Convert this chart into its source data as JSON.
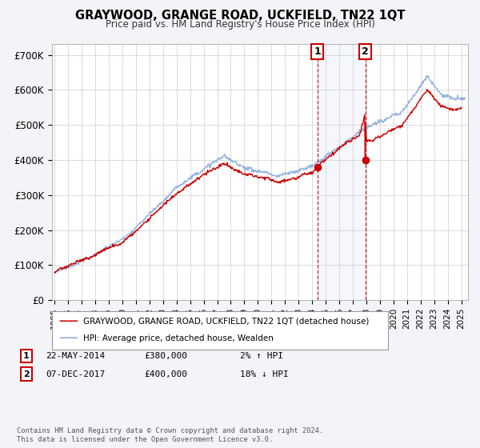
{
  "title": "GRAYWOOD, GRANGE ROAD, UCKFIELD, TN22 1QT",
  "subtitle": "Price paid vs. HM Land Registry's House Price Index (HPI)",
  "ylabel_ticks": [
    "£0",
    "£100K",
    "£200K",
    "£300K",
    "£400K",
    "£500K",
    "£600K",
    "£700K"
  ],
  "ytick_values": [
    0,
    100000,
    200000,
    300000,
    400000,
    500000,
    600000,
    700000
  ],
  "ylim": [
    0,
    730000
  ],
  "xlim_start": 1994.8,
  "xlim_end": 2025.5,
  "line1_color": "#cc0000",
  "line2_color": "#88aadd",
  "sale1_date": 2014.39,
  "sale1_price": 380000,
  "sale2_date": 2017.92,
  "sale2_price": 400000,
  "legend_label1": "GRAYWOOD, GRANGE ROAD, UCKFIELD, TN22 1QT (detached house)",
  "legend_label2": "HPI: Average price, detached house, Wealden",
  "table_row1": [
    "1",
    "22-MAY-2014",
    "£380,000",
    "2% ↑ HPI"
  ],
  "table_row2": [
    "2",
    "07-DEC-2017",
    "£400,000",
    "18% ↓ HPI"
  ],
  "footer": "Contains HM Land Registry data © Crown copyright and database right 2024.\nThis data is licensed under the Open Government Licence v3.0.",
  "bg_color": "#f2f4f8",
  "plot_bg": "#ffffff",
  "annotation_box_color": "#cc0000"
}
